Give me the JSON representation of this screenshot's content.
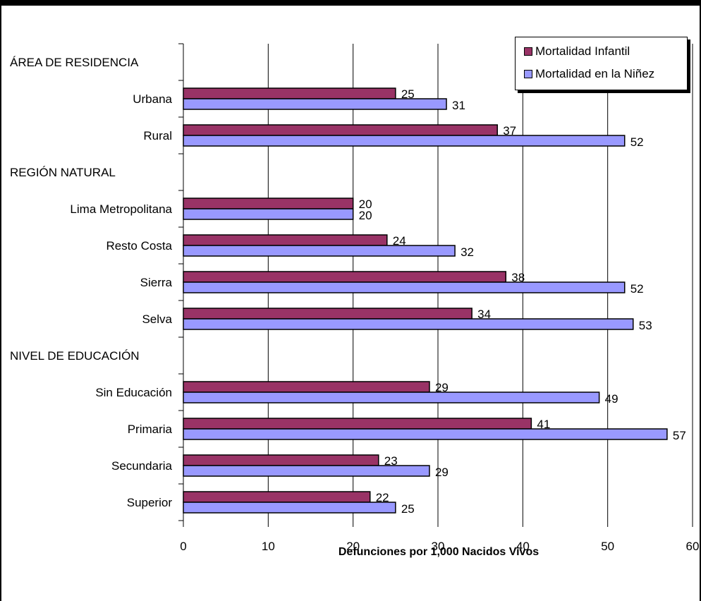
{
  "chart_data": {
    "type": "bar",
    "orientation": "horizontal",
    "xlabel": "Defunciones por 1,000 Nacidos Vivos",
    "xlim": [
      0,
      60
    ],
    "xticks": [
      "0",
      "10",
      "20",
      "30",
      "40",
      "50",
      "60"
    ],
    "grid": true,
    "legend_position": "top-right",
    "rows": [
      {
        "label": "ÁREA DE RESIDENCIA",
        "header": true
      },
      {
        "label": "Urbana",
        "infantil": 25,
        "ninez": 31
      },
      {
        "label": "Rural",
        "infantil": 37,
        "ninez": 52
      },
      {
        "label": "REGIÓN NATURAL",
        "header": true
      },
      {
        "label": "Lima Metropolitana",
        "infantil": 20,
        "ninez": 20
      },
      {
        "label": "Resto Costa",
        "infantil": 24,
        "ninez": 32
      },
      {
        "label": "Sierra",
        "infantil": 38,
        "ninez": 52
      },
      {
        "label": "Selva",
        "infantil": 34,
        "ninez": 53
      },
      {
        "label": "NIVEL DE EDUCACIÓN",
        "header": true
      },
      {
        "label": "Sin Educación",
        "infantil": 29,
        "ninez": 49
      },
      {
        "label": "Primaria",
        "infantil": 41,
        "ninez": 57
      },
      {
        "label": "Secundaria",
        "infantil": 23,
        "ninez": 29
      },
      {
        "label": "Superior",
        "infantil": 22,
        "ninez": 25
      }
    ],
    "series": [
      {
        "key": "infantil",
        "name": "Mortalidad Infantil",
        "color": "#993366"
      },
      {
        "key": "ninez",
        "name": "Mortalidad en la Niñez",
        "color": "#9999ff"
      }
    ]
  }
}
